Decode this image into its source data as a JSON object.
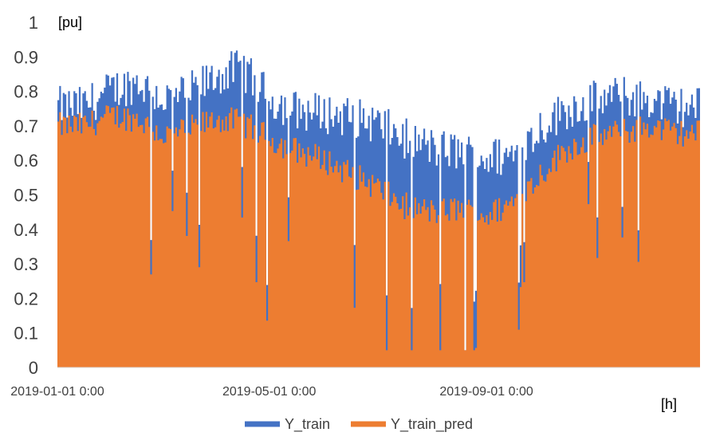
{
  "chart_data": {
    "type": "area",
    "title": "",
    "y_unit_label": "[pu]",
    "x_unit_label": "[h]",
    "ylim": [
      0,
      1
    ],
    "y_ticks": [
      "0",
      "0.1",
      "0.2",
      "0.3",
      "0.4",
      "0.5",
      "0.6",
      "0.7",
      "0.8",
      "0.9",
      "1"
    ],
    "x_range": [
      "2019-01-01",
      "2019-12-31"
    ],
    "x_tick_labels": [
      {
        "date": "2019-01-01",
        "label": "2019-01-01 0:00"
      },
      {
        "date": "2019-05-01",
        "label": "2019-05-01 0:00"
      },
      {
        "date": "2019-09-01",
        "label": "2019-09-01 0:00"
      }
    ],
    "grid": false,
    "legend_position": "bottom",
    "series": [
      {
        "name": "Y_train",
        "color": "#4472C4",
        "x": [
          "2019-01-15",
          "2019-02-01",
          "2019-02-15",
          "2019-03-01",
          "2019-03-15",
          "2019-04-01",
          "2019-04-15",
          "2019-05-01",
          "2019-05-15",
          "2019-06-01",
          "2019-06-15",
          "2019-07-01",
          "2019-07-15",
          "2019-08-01",
          "2019-08-15",
          "2019-09-01",
          "2019-09-15",
          "2019-10-01",
          "2019-10-15",
          "2019-11-01",
          "2019-11-15",
          "2019-12-01",
          "2019-12-15"
        ],
        "values": [
          0.75,
          0.8,
          0.82,
          0.77,
          0.79,
          0.84,
          0.86,
          0.77,
          0.74,
          0.73,
          0.72,
          0.7,
          0.66,
          0.63,
          0.62,
          0.6,
          0.61,
          0.69,
          0.74,
          0.77,
          0.78,
          0.77,
          0.75
        ]
      },
      {
        "name": "Y_train_pred",
        "color": "#ED7D31",
        "x": [
          "2019-01-15",
          "2019-02-01",
          "2019-02-15",
          "2019-03-01",
          "2019-03-15",
          "2019-04-01",
          "2019-04-15",
          "2019-05-01",
          "2019-05-15",
          "2019-06-01",
          "2019-06-15",
          "2019-07-01",
          "2019-07-15",
          "2019-08-01",
          "2019-08-15",
          "2019-09-01",
          "2019-09-15",
          "2019-10-01",
          "2019-10-15",
          "2019-11-01",
          "2019-11-15",
          "2019-12-01",
          "2019-12-15"
        ],
        "values": [
          0.7,
          0.73,
          0.72,
          0.67,
          0.69,
          0.72,
          0.71,
          0.66,
          0.63,
          0.6,
          0.56,
          0.52,
          0.47,
          0.45,
          0.46,
          0.44,
          0.48,
          0.56,
          0.63,
          0.67,
          0.68,
          0.7,
          0.68
        ]
      }
    ]
  }
}
